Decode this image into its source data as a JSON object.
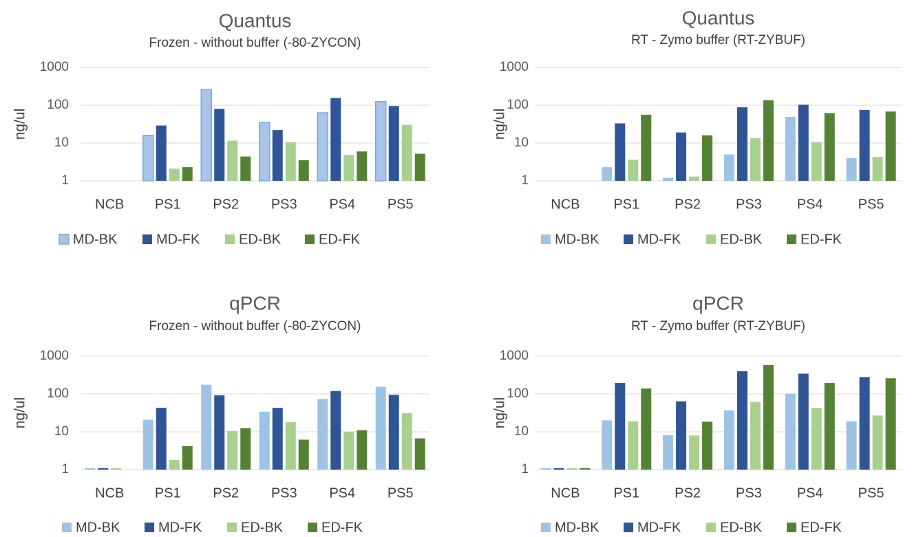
{
  "chart_data": [
    {
      "type": "bar",
      "title": "Quantus",
      "subtitle": "Frozen - without buffer (-80-ZYCON)",
      "ylabel": "ng/ul",
      "yscale": "log",
      "ylim": [
        1,
        1000
      ],
      "yticks": [
        "1",
        "10",
        "100",
        "1000"
      ],
      "categories": [
        "NCB",
        "PS1",
        "PS2",
        "PS3",
        "PS4",
        "PS5"
      ],
      "series": [
        {
          "name": "MD-BK",
          "color": "#a9c4eb",
          "outline": "#7da6db",
          "values": [
            null,
            16,
            260,
            35,
            63,
            125
          ]
        },
        {
          "name": "MD-FK",
          "color": "#2f5597",
          "values": [
            null,
            29,
            80,
            22,
            155,
            95
          ]
        },
        {
          "name": "ED-BK",
          "color": "#a9d18e",
          "values": [
            null,
            2.1,
            11.5,
            10.5,
            4.8,
            30
          ]
        },
        {
          "name": "ED-FK",
          "color": "#548235",
          "values": [
            null,
            2.3,
            4.4,
            3.5,
            6.0,
            5.2
          ]
        }
      ],
      "legend": "bottom"
    },
    {
      "type": "bar",
      "title": "Quantus",
      "subtitle": "RT - Zymo buffer (RT-ZYBUF)",
      "ylabel": "ng/ul",
      "yscale": "log",
      "ylim": [
        1,
        1000
      ],
      "yticks": [
        "1",
        "10",
        "100",
        "1000"
      ],
      "categories": [
        "NCB",
        "PS1",
        "PS2",
        "PS3",
        "PS4",
        "PS5"
      ],
      "series": [
        {
          "name": "MD-BK",
          "color": "#9dc3e6",
          "values": [
            null,
            2.3,
            1.2,
            5.0,
            49,
            4.0
          ]
        },
        {
          "name": "MD-FK",
          "color": "#2f5597",
          "values": [
            null,
            33,
            19,
            88,
            103,
            75
          ]
        },
        {
          "name": "ED-BK",
          "color": "#a9d18e",
          "values": [
            null,
            3.6,
            1.3,
            13.5,
            10.5,
            4.3
          ]
        },
        {
          "name": "ED-FK",
          "color": "#548235",
          "values": [
            null,
            56,
            16,
            135,
            62,
            68
          ]
        }
      ],
      "legend": "bottom"
    },
    {
      "type": "bar",
      "title": "qPCR",
      "subtitle": "Frozen - without buffer (-80-ZYCON)",
      "ylabel": "ng/ul",
      "yscale": "log",
      "ylim": [
        1,
        1000
      ],
      "yticks": [
        "1",
        "10",
        "100",
        "1000"
      ],
      "categories": [
        "NCB",
        "PS1",
        "PS2",
        "PS3",
        "PS4",
        "PS5"
      ],
      "series": [
        {
          "name": "MD-BK",
          "color": "#9dc3e6",
          "values": [
            1.0,
            21,
            175,
            34,
            74,
            155
          ]
        },
        {
          "name": "MD-FK",
          "color": "#2f5597",
          "values": [
            1.0,
            43,
            92,
            43,
            120,
            95
          ]
        },
        {
          "name": "ED-BK",
          "color": "#a9d18e",
          "values": [
            1.0,
            1.8,
            10.5,
            18,
            10,
            31
          ]
        },
        {
          "name": "ED-FK",
          "color": "#548235",
          "values": [
            null,
            4.2,
            12.5,
            6.2,
            11,
            6.7
          ]
        }
      ],
      "legend": "bottom"
    },
    {
      "type": "bar",
      "title": "qPCR",
      "subtitle": "RT - Zymo buffer (RT-ZYBUF)",
      "ylabel": "ng/ul",
      "yscale": "log",
      "ylim": [
        1,
        1000
      ],
      "yticks": [
        "1",
        "10",
        "100",
        "1000"
      ],
      "categories": [
        "NCB",
        "PS1",
        "PS2",
        "PS3",
        "PS4",
        "PS5"
      ],
      "series": [
        {
          "name": "MD-BK",
          "color": "#9dc3e6",
          "values": [
            1.0,
            20,
            8.2,
            37,
            102,
            19
          ]
        },
        {
          "name": "MD-FK",
          "color": "#2f5597",
          "values": [
            1.0,
            195,
            64,
            400,
            345,
            280
          ]
        },
        {
          "name": "ED-BK",
          "color": "#a9d18e",
          "values": [
            1.0,
            19,
            8.0,
            62,
            43,
            27
          ]
        },
        {
          "name": "ED-FK",
          "color": "#548235",
          "values": [
            1.0,
            140,
            18.5,
            580,
            195,
            260
          ]
        }
      ],
      "legend": "bottom"
    }
  ]
}
